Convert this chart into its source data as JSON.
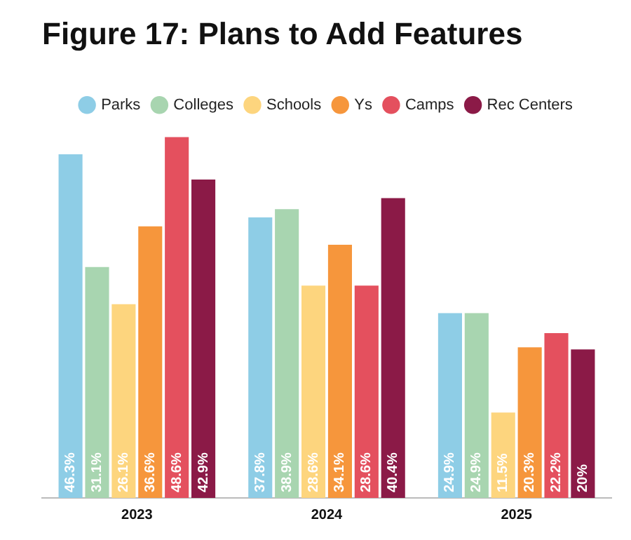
{
  "chart_data": {
    "type": "bar",
    "title": "Figure 17: Plans to Add Features",
    "categories": [
      "2023",
      "2024",
      "2025"
    ],
    "legend": "top",
    "grid": false,
    "series": [
      {
        "name": "Parks",
        "color": "#8ecde6",
        "values": [
          46.3,
          37.8,
          24.9
        ],
        "value_labels": [
          "46.3%",
          "37.8%",
          "24.9%"
        ]
      },
      {
        "name": "Colleges",
        "color": "#a8d5b0",
        "values": [
          31.1,
          38.9,
          24.9
        ],
        "value_labels": [
          "31.1%",
          "38.9%",
          "24.9%"
        ]
      },
      {
        "name": "Schools",
        "color": "#fdd57e",
        "values": [
          26.1,
          28.6,
          11.5
        ],
        "value_labels": [
          "26.1%",
          "28.6%",
          "11.5%"
        ]
      },
      {
        "name": "Ys",
        "color": "#f6963c",
        "values": [
          36.6,
          34.1,
          20.3
        ],
        "value_labels": [
          "36.6%",
          "34.1%",
          "20.3%"
        ]
      },
      {
        "name": "Camps",
        "color": "#e4505e",
        "values": [
          48.6,
          28.6,
          22.2
        ],
        "value_labels": [
          "48.6%",
          "28.6%",
          "22.2%"
        ]
      },
      {
        "name": "Rec Centers",
        "color": "#8b1a47",
        "values": [
          42.9,
          40.4,
          20
        ],
        "value_labels": [
          "42.9%",
          "40.4%",
          "20%"
        ]
      }
    ]
  }
}
